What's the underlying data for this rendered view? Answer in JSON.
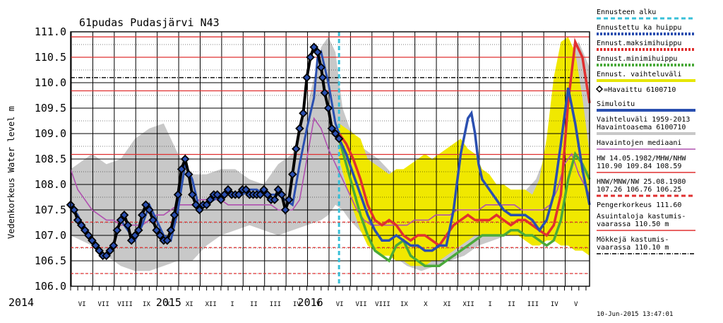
{
  "chart_data": {
    "type": "line",
    "title": "61pudas Pudasjärvi N43",
    "ylabel": "Vedenkorkeus Water level m",
    "ylim": [
      106.0,
      111.0
    ],
    "yticks": [
      "111.0",
      "110.5",
      "110.0",
      "109.5",
      "109.0",
      "108.5",
      "108.0",
      "107.5",
      "107.0",
      "106.5",
      "106.0"
    ],
    "x_axis": {
      "range_days": [
        0,
        365
      ],
      "year_labels": [
        {
          "label": "2014",
          "day": -90
        },
        {
          "label": "2015",
          "day": 47
        },
        {
          "label": "2016",
          "day": 245
        }
      ],
      "month_labels": [
        {
          "label": "VI",
          "day": -74
        },
        {
          "label": "VII",
          "day": -44
        },
        {
          "label": "VIII",
          "day": -14
        },
        {
          "label": "IX",
          "day": 16
        },
        {
          "label": "X",
          "day": 46
        },
        {
          "label": "XI",
          "day": 76
        },
        {
          "label": "XII",
          "day": 106
        },
        {
          "label": "I",
          "day": 136
        },
        {
          "label": "II",
          "day": 166
        },
        {
          "label": "III",
          "day": 196
        },
        {
          "label": "IV",
          "day": 226
        },
        {
          "label": "V",
          "day": 256
        },
        {
          "label": "VI",
          "day": 286
        },
        {
          "label": "VII",
          "day": 316
        },
        {
          "label": "VIII",
          "day": 346
        },
        {
          "label": "IX",
          "day": 376
        },
        {
          "label": "X",
          "day": 406
        },
        {
          "label": "XI",
          "day": 436
        },
        {
          "label": "XII",
          "day": 466
        },
        {
          "label": "I",
          "day": 496
        },
        {
          "label": "II",
          "day": 526
        },
        {
          "label": "III",
          "day": 556
        },
        {
          "label": "IV",
          "day": 586
        },
        {
          "label": "V",
          "day": 616
        }
      ],
      "start_day": -90,
      "end_day": 635
    },
    "forecast_start_day": 285,
    "hlines": [
      {
        "y": 110.9,
        "color": "#e03030",
        "style": "solid"
      },
      {
        "y": 110.5,
        "color": "#e03030",
        "style": "solid"
      },
      {
        "y": 110.1,
        "color": "#000000",
        "style": "dashdot"
      },
      {
        "y": 109.84,
        "color": "#e03030",
        "style": "solid"
      },
      {
        "y": 108.59,
        "color": "#e03030",
        "style": "solid"
      },
      {
        "y": 107.26,
        "color": "#e03030",
        "style": "dashed"
      },
      {
        "y": 106.76,
        "color": "#e03030",
        "style": "dashed"
      },
      {
        "y": 106.25,
        "color": "#e03030",
        "style": "dashed"
      }
    ],
    "variation_band": {
      "x": [
        -90,
        -60,
        -40,
        -20,
        0,
        20,
        40,
        60,
        80,
        100,
        120,
        140,
        160,
        180,
        200,
        220,
        240,
        260,
        270,
        280,
        290,
        300,
        320,
        340,
        360,
        380,
        400,
        420,
        440,
        460,
        480,
        500,
        520,
        540,
        560,
        580,
        600,
        620,
        635
      ],
      "upper": [
        108.3,
        108.6,
        108.4,
        108.5,
        108.9,
        109.1,
        109.2,
        108.6,
        108.2,
        108.2,
        108.3,
        108.3,
        108.1,
        108.0,
        108.4,
        108.6,
        109.5,
        110.7,
        110.9,
        110.6,
        109.5,
        109.1,
        108.7,
        108.5,
        108.2,
        108.0,
        107.9,
        107.9,
        107.8,
        107.8,
        107.7,
        107.7,
        107.7,
        107.8,
        108.1,
        108.8,
        110.5,
        110.8,
        110.3
      ],
      "lower": [
        107.0,
        106.8,
        106.6,
        106.4,
        106.3,
        106.3,
        106.4,
        106.5,
        106.5,
        106.8,
        107.0,
        107.1,
        107.2,
        107.1,
        107.0,
        107.1,
        107.2,
        107.3,
        107.4,
        107.6,
        107.5,
        107.3,
        107.0,
        106.8,
        106.6,
        106.4,
        106.3,
        106.4,
        106.5,
        106.6,
        106.8,
        106.9,
        107.0,
        107.1,
        107.1,
        107.0,
        107.0,
        106.9,
        106.8
      ]
    },
    "forecast_band": {
      "x": [
        285,
        295,
        305,
        315,
        325,
        335,
        345,
        355,
        365,
        375,
        385,
        395,
        405,
        415,
        425,
        435,
        445,
        455,
        465,
        475,
        485,
        495,
        505,
        515,
        525,
        535,
        545,
        555,
        565,
        575,
        585,
        595,
        605,
        615,
        625,
        635
      ],
      "upper": [
        109.2,
        109.1,
        109.0,
        108.9,
        108.5,
        108.4,
        108.3,
        108.2,
        108.3,
        108.3,
        108.4,
        108.5,
        108.6,
        108.5,
        108.6,
        108.7,
        108.8,
        108.9,
        108.7,
        108.6,
        108.3,
        108.2,
        108.0,
        108.0,
        107.9,
        107.9,
        107.9,
        107.8,
        108.1,
        108.9,
        110.1,
        110.8,
        110.9,
        110.6,
        109.7,
        108.6
      ],
      "lower": [
        108.5,
        108.0,
        107.5,
        107.1,
        106.8,
        106.7,
        106.6,
        106.6,
        106.5,
        106.5,
        106.4,
        106.4,
        106.4,
        106.5,
        106.5,
        106.6,
        106.7,
        106.8,
        106.9,
        107.0,
        107.0,
        107.0,
        107.0,
        107.0,
        107.0,
        107.0,
        106.9,
        106.8,
        106.8,
        106.9,
        106.9,
        106.8,
        106.8,
        106.7,
        106.7,
        106.6
      ]
    },
    "series": [
      {
        "name": "=Havaittu 6100710",
        "color": "#000000",
        "x": [
          -90,
          -85,
          -80,
          -75,
          -70,
          -65,
          -60,
          -55,
          -50,
          -45,
          -40,
          -35,
          -30,
          -25,
          -20,
          -15,
          -10,
          -5,
          0,
          5,
          10,
          15,
          20,
          25,
          30,
          35,
          40,
          45,
          50,
          55,
          60,
          65,
          70,
          75,
          80,
          85,
          90,
          95,
          100,
          105,
          110,
          115,
          120,
          125,
          130,
          135,
          140,
          145,
          150,
          155,
          160,
          165,
          170,
          175,
          180,
          185,
          190,
          195,
          200,
          205,
          210,
          215,
          220,
          225,
          230,
          235,
          240,
          245,
          250,
          255,
          260,
          262,
          265,
          270,
          275,
          280,
          285
        ],
        "y": [
          107.6,
          107.5,
          107.3,
          107.2,
          107.1,
          107.0,
          106.9,
          106.8,
          106.7,
          106.6,
          106.6,
          106.7,
          106.8,
          107.1,
          107.3,
          107.4,
          107.2,
          106.9,
          107.0,
          107.1,
          107.4,
          107.6,
          107.5,
          107.3,
          107.1,
          107.0,
          106.9,
          106.9,
          107.1,
          107.4,
          107.8,
          108.3,
          108.5,
          108.2,
          107.8,
          107.6,
          107.5,
          107.6,
          107.6,
          107.7,
          107.8,
          107.8,
          107.7,
          107.8,
          107.9,
          107.8,
          107.8,
          107.8,
          107.9,
          107.9,
          107.8,
          107.8,
          107.8,
          107.8,
          107.9,
          107.8,
          107.7,
          107.7,
          107.9,
          107.8,
          107.5,
          107.7,
          108.2,
          108.7,
          109.1,
          109.4,
          110.1,
          110.5,
          110.7,
          110.6,
          110.3,
          110.1,
          109.8,
          109.5,
          109.1,
          109.0,
          108.9
        ]
      },
      {
        "name": "Simuloitu",
        "color": "#2a4fb0",
        "x": [
          -90,
          -80,
          -70,
          -60,
          -50,
          -40,
          -30,
          -20,
          -10,
          0,
          10,
          20,
          30,
          40,
          50,
          60,
          70,
          80,
          90,
          100,
          110,
          120,
          130,
          140,
          150,
          160,
          170,
          180,
          190,
          200,
          210,
          220,
          230,
          240,
          250,
          255,
          260,
          270,
          280,
          285
        ],
        "y": [
          107.6,
          107.4,
          107.1,
          106.9,
          106.7,
          106.6,
          106.8,
          107.3,
          107.1,
          106.9,
          107.2,
          107.6,
          107.3,
          107.0,
          106.9,
          107.5,
          108.4,
          108.1,
          107.5,
          107.6,
          107.7,
          107.8,
          107.9,
          107.8,
          107.8,
          107.9,
          107.9,
          107.8,
          107.8,
          107.8,
          107.7,
          107.6,
          108.4,
          109.1,
          109.7,
          110.5,
          110.6,
          110.0,
          109.2,
          109.0
        ]
      },
      {
        "name": "Havaintojen mediaani",
        "color": "#b050b0",
        "x": [
          -90,
          -80,
          -70,
          -60,
          -50,
          -40,
          -30,
          -20,
          -10,
          0,
          10,
          20,
          30,
          40,
          50,
          60,
          70,
          80,
          90,
          100,
          110,
          120,
          130,
          140,
          150,
          160,
          170,
          180,
          190,
          200,
          210,
          220,
          230,
          240,
          250,
          260,
          270,
          280,
          290,
          300,
          310,
          320,
          330,
          340,
          350,
          360,
          370,
          380,
          390,
          400,
          410,
          420,
          430,
          440,
          450,
          460,
          470,
          480,
          490,
          500,
          510,
          520,
          530,
          540,
          550,
          560,
          570,
          580,
          590,
          600,
          610,
          620,
          635
        ],
        "y": [
          108.3,
          107.9,
          107.7,
          107.5,
          107.4,
          107.3,
          107.3,
          107.2,
          107.2,
          107.2,
          107.2,
          107.3,
          107.4,
          107.4,
          107.5,
          107.6,
          107.6,
          107.6,
          107.7,
          107.7,
          107.7,
          107.7,
          107.6,
          107.6,
          107.6,
          107.6,
          107.6,
          107.6,
          107.6,
          107.5,
          107.5,
          107.5,
          107.7,
          108.5,
          109.3,
          109.1,
          108.7,
          108.4,
          108.1,
          107.8,
          107.5,
          107.3,
          107.2,
          107.2,
          107.2,
          107.2,
          107.2,
          107.2,
          107.3,
          107.3,
          107.3,
          107.4,
          107.4,
          107.4,
          107.5,
          107.5,
          107.5,
          107.5,
          107.6,
          107.6,
          107.6,
          107.6,
          107.6,
          107.5,
          107.5,
          107.5,
          107.5,
          107.6,
          107.9,
          108.4,
          108.6,
          108.2,
          107.8
        ]
      },
      {
        "name": "Ennustettu ka huippu",
        "color": "#2a4fb0",
        "x": [
          285,
          295,
          305,
          315,
          325,
          335,
          345,
          355,
          365,
          375,
          385,
          395,
          405,
          415,
          425,
          435,
          445,
          455,
          465,
          470,
          475,
          480,
          485,
          495,
          505,
          515,
          525,
          535,
          545,
          555,
          565,
          575,
          585,
          595,
          605,
          615,
          625,
          635
        ],
        "y": [
          108.9,
          108.6,
          108.2,
          107.8,
          107.4,
          107.1,
          106.9,
          106.9,
          107.0,
          106.9,
          106.8,
          106.8,
          106.7,
          106.7,
          106.8,
          106.8,
          107.5,
          108.6,
          109.3,
          109.4,
          109.0,
          108.4,
          108.1,
          107.9,
          107.7,
          107.5,
          107.4,
          107.4,
          107.4,
          107.3,
          107.1,
          107.3,
          107.8,
          108.8,
          109.9,
          109.2,
          108.3,
          107.6
        ]
      },
      {
        "name": "Ennust.maksimihuippu",
        "color": "#e03030",
        "x": [
          285,
          295,
          305,
          315,
          325,
          335,
          345,
          355,
          365,
          375,
          385,
          395,
          405,
          415,
          425,
          435,
          445,
          455,
          465,
          475,
          485,
          495,
          505,
          515,
          525,
          535,
          545,
          555,
          565,
          575,
          585,
          595,
          605,
          615,
          625,
          635
        ],
        "y": [
          109.0,
          108.8,
          108.5,
          108.1,
          107.6,
          107.3,
          107.2,
          107.3,
          107.2,
          107.0,
          106.9,
          107.0,
          107.0,
          106.9,
          106.8,
          107.0,
          107.2,
          107.3,
          107.4,
          107.3,
          107.3,
          107.3,
          107.4,
          107.3,
          107.2,
          107.3,
          107.3,
          107.2,
          107.1,
          107.0,
          107.2,
          107.8,
          109.6,
          110.8,
          110.5,
          109.6
        ]
      },
      {
        "name": "Ennust.minimihuippu",
        "color": "#4aaa3a",
        "x": [
          285,
          295,
          305,
          315,
          325,
          335,
          345,
          355,
          365,
          375,
          385,
          395,
          405,
          415,
          425,
          435,
          445,
          455,
          465,
          475,
          485,
          495,
          505,
          515,
          525,
          535,
          545,
          555,
          565,
          575,
          585,
          595,
          605,
          615,
          625,
          635
        ],
        "y": [
          108.9,
          108.4,
          107.9,
          107.4,
          107.0,
          106.7,
          106.6,
          106.5,
          106.8,
          106.9,
          106.6,
          106.5,
          106.4,
          106.4,
          106.4,
          106.5,
          106.6,
          106.7,
          106.8,
          106.9,
          107.0,
          107.0,
          107.0,
          107.0,
          107.1,
          107.1,
          107.0,
          107.0,
          106.9,
          106.8,
          106.9,
          107.3,
          108.1,
          108.6,
          108.4,
          108.1
        ]
      }
    ]
  },
  "legend": [
    {
      "label": "Ennusteen alku",
      "color": "#38c0d8",
      "style": "dashed"
    },
    {
      "label": "Ennustettu ka huippu",
      "color": "#2a4fb0",
      "style": "dotted"
    },
    {
      "label": "Ennust.maksimihuippu",
      "color": "#e03030",
      "style": "dotted"
    },
    {
      "label": "Ennust.minimihuippu",
      "color": "#4aaa3a",
      "style": "dotted"
    },
    {
      "label": "Ennust. vaihteluväli",
      "color": "#e6e600",
      "style": "solid-thick"
    },
    {
      "label": "=Havaittu 6100710",
      "color": "#000000",
      "style": "marker"
    },
    {
      "label": "Simuloitu",
      "color": "#2a4fb0",
      "style": "solid-thick"
    },
    {
      "label": "Vaihteluväli 1959-2013",
      "label2": "Havaintoasema 6100710",
      "color": "#c8c8c8",
      "style": "solid-thick"
    },
    {
      "label": "Havaintojen mediaani",
      "color": "#b050b0",
      "style": "solid"
    },
    {
      "label": "HW 14.05.1982/MHW/NHW",
      "label2": "110.90 109.84 108.59",
      "color": "#e03030",
      "style": "solid"
    },
    {
      "label": "HNW/MNW/NW 25.08.1980",
      "label2": "107.26 106.76 106.25",
      "color": "#e03030",
      "style": "dashed"
    },
    {
      "label": "Pengerkorkeus 111.60",
      "color": "#000000",
      "style": "none"
    },
    {
      "label": "Asuintaloja kastumis-",
      "label2": "vaarassa 110.50 m",
      "color": "#e03030",
      "style": "solid"
    },
    {
      "label": "Mökkejä kastumis-",
      "label2": "vaarassa 110.10 m",
      "color": "#000000",
      "style": "dashdot"
    }
  ],
  "timestamp": "10-Jun-2015 13:47:01"
}
